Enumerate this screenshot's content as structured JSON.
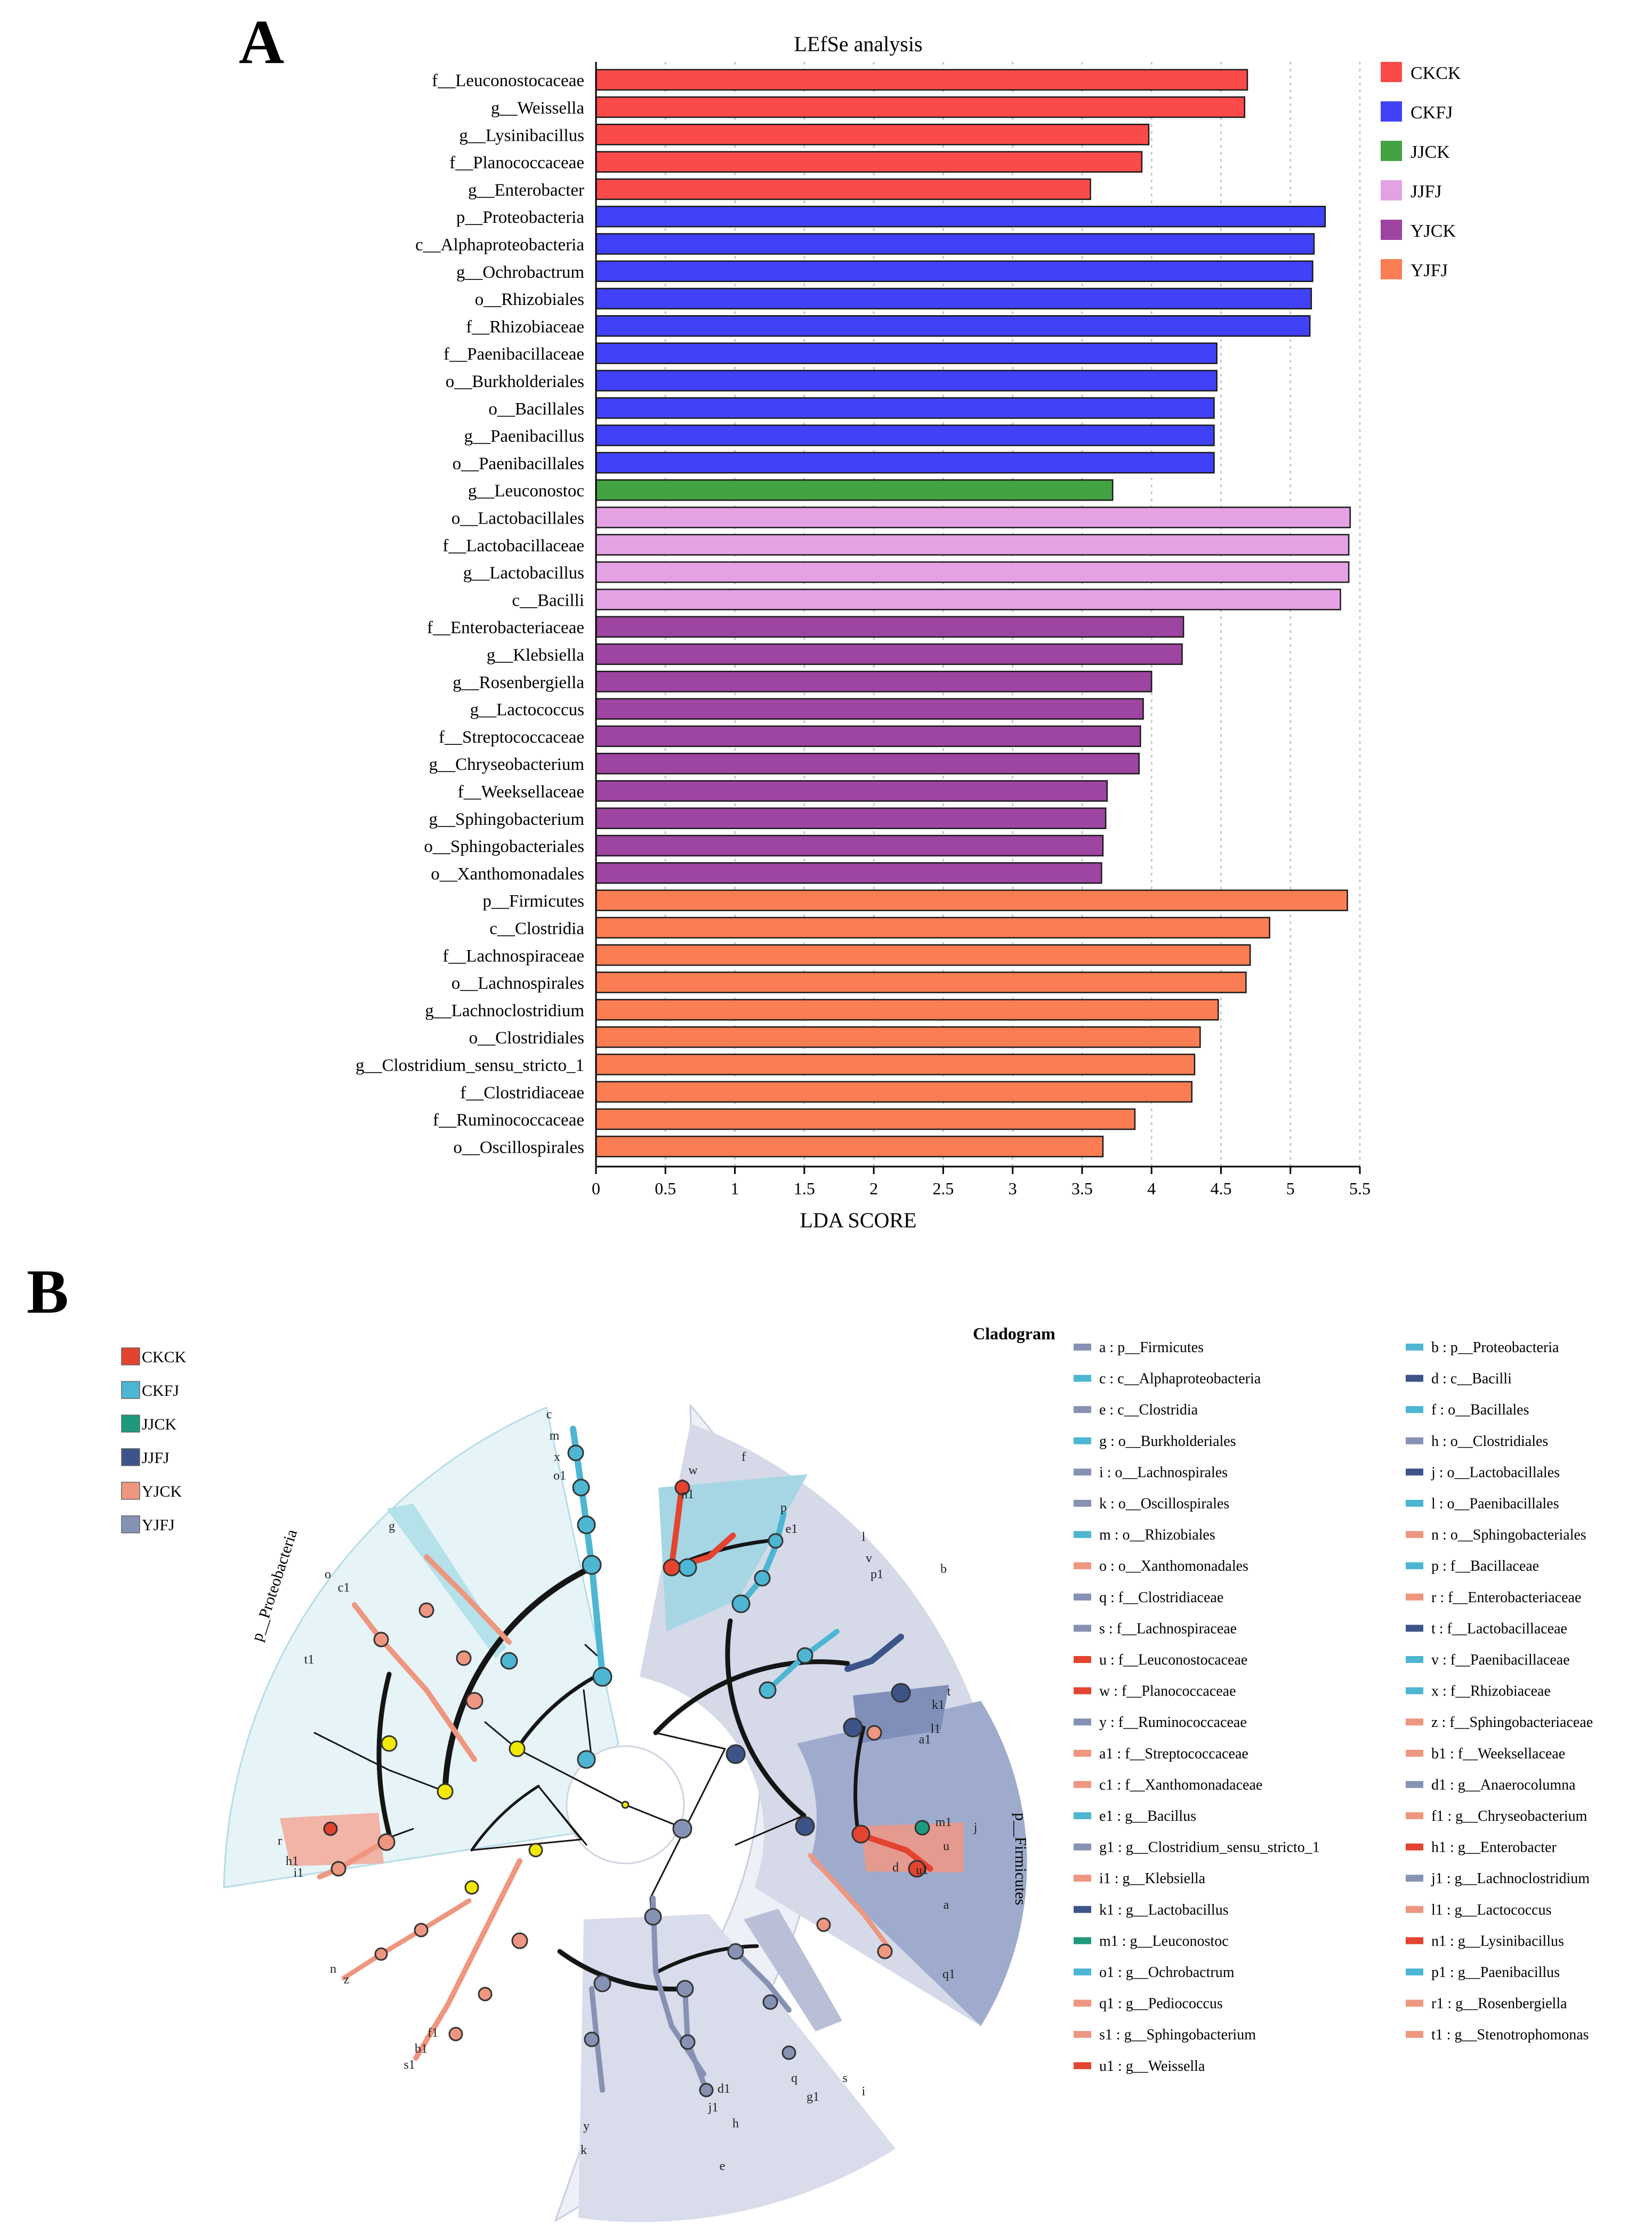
{
  "panels": {
    "a": "A",
    "b": "B"
  },
  "chart_data": [
    {
      "type": "bar",
      "orientation": "horizontal",
      "title": "LEfSe analysis",
      "xlabel": "LDA SCORE",
      "xlim": [
        0,
        5.5
      ],
      "xticks": [
        "0",
        "0.5",
        "1",
        "1.5",
        "2",
        "2.5",
        "3",
        "3.5",
        "4",
        "4.5",
        "5",
        "5.5"
      ],
      "grid": "vertical dotted",
      "legend_position": "right",
      "groups": [
        {
          "name": "CKCK",
          "color": "#fb4a4a"
        },
        {
          "name": "CKFJ",
          "color": "#4141f8"
        },
        {
          "name": "JJCK",
          "color": "#43a343"
        },
        {
          "name": "JJFJ",
          "color": "#e4a1e4"
        },
        {
          "name": "YJCK",
          "color": "#9e44a1"
        },
        {
          "name": "YJFJ",
          "color": "#fb7d53"
        }
      ],
      "bars": [
        {
          "label": "f__Leuconostocaceae",
          "value": 4.69,
          "group": "CKCK"
        },
        {
          "label": "g__Weissella",
          "value": 4.67,
          "group": "CKCK"
        },
        {
          "label": "g__Lysinibacillus",
          "value": 3.98,
          "group": "CKCK"
        },
        {
          "label": "f__Planococcaceae",
          "value": 3.93,
          "group": "CKCK"
        },
        {
          "label": "g__Enterobacter",
          "value": 3.56,
          "group": "CKCK"
        },
        {
          "label": "p__Proteobacteria",
          "value": 5.25,
          "group": "CKFJ"
        },
        {
          "label": "c__Alphaproteobacteria",
          "value": 5.17,
          "group": "CKFJ"
        },
        {
          "label": "g__Ochrobactrum",
          "value": 5.16,
          "group": "CKFJ"
        },
        {
          "label": "o__Rhizobiales",
          "value": 5.15,
          "group": "CKFJ"
        },
        {
          "label": "f__Rhizobiaceae",
          "value": 5.14,
          "group": "CKFJ"
        },
        {
          "label": "f__Paenibacillaceae",
          "value": 4.47,
          "group": "CKFJ"
        },
        {
          "label": "o__Burkholderiales",
          "value": 4.47,
          "group": "CKFJ"
        },
        {
          "label": "o__Bacillales",
          "value": 4.45,
          "group": "CKFJ"
        },
        {
          "label": "g__Paenibacillus",
          "value": 4.45,
          "group": "CKFJ"
        },
        {
          "label": "o__Paenibacillales",
          "value": 4.45,
          "group": "CKFJ"
        },
        {
          "label": "g__Leuconostoc",
          "value": 3.72,
          "group": "JJCK"
        },
        {
          "label": "o__Lactobacillales",
          "value": 5.43,
          "group": "JJFJ"
        },
        {
          "label": "f__Lactobacillaceae",
          "value": 5.42,
          "group": "JJFJ"
        },
        {
          "label": "g__Lactobacillus",
          "value": 5.42,
          "group": "JJFJ"
        },
        {
          "label": "c__Bacilli",
          "value": 5.36,
          "group": "JJFJ"
        },
        {
          "label": "f__Enterobacteriaceae",
          "value": 4.23,
          "group": "YJCK"
        },
        {
          "label": "g__Klebsiella",
          "value": 4.22,
          "group": "YJCK"
        },
        {
          "label": "g__Rosenbergiella",
          "value": 4.0,
          "group": "YJCK"
        },
        {
          "label": "g__Lactococcus",
          "value": 3.94,
          "group": "YJCK"
        },
        {
          "label": "f__Streptococcaceae",
          "value": 3.92,
          "group": "YJCK"
        },
        {
          "label": "g__Chryseobacterium",
          "value": 3.91,
          "group": "YJCK"
        },
        {
          "label": "f__Weeksellaceae",
          "value": 3.68,
          "group": "YJCK"
        },
        {
          "label": "g__Sphingobacterium",
          "value": 3.67,
          "group": "YJCK"
        },
        {
          "label": "o__Sphingobacteriales",
          "value": 3.65,
          "group": "YJCK"
        },
        {
          "label": "o__Xanthomonadales",
          "value": 3.64,
          "group": "YJCK"
        },
        {
          "label": "p__Firmicutes",
          "value": 5.41,
          "group": "YJFJ"
        },
        {
          "label": "c__Clostridia",
          "value": 4.85,
          "group": "YJFJ"
        },
        {
          "label": "f__Lachnospiraceae",
          "value": 4.71,
          "group": "YJFJ"
        },
        {
          "label": "o__Lachnospirales",
          "value": 4.68,
          "group": "YJFJ"
        },
        {
          "label": "g__Lachnoclostridium",
          "value": 4.48,
          "group": "YJFJ"
        },
        {
          "label": "o__Clostridiales",
          "value": 4.35,
          "group": "YJFJ"
        },
        {
          "label": "g__Clostridium_sensu_stricto_1",
          "value": 4.31,
          "group": "YJFJ"
        },
        {
          "label": "f__Clostridiaceae",
          "value": 4.29,
          "group": "YJFJ"
        },
        {
          "label": "f__Ruminococcaceae",
          "value": 3.88,
          "group": "YJFJ"
        },
        {
          "label": "o__Oscillospirales",
          "value": 3.65,
          "group": "YJFJ"
        }
      ]
    },
    {
      "type": "cladogram",
      "title": "Cladogram",
      "groups": [
        {
          "name": "CKCK",
          "color": "#e3432f"
        },
        {
          "name": "CKFJ",
          "color": "#4db6d2"
        },
        {
          "name": "JJCK",
          "color": "#1d9a7c"
        },
        {
          "name": "JJFJ",
          "color": "#3d5488"
        },
        {
          "name": "YJCK",
          "color": "#ef9680"
        },
        {
          "name": "YJFJ",
          "color": "#8592b4"
        }
      ],
      "arc_labels": [
        "p__Proteobacteria",
        "p__Firmicutes"
      ],
      "legend_left": [
        {
          "text": "a : p__Firmicutes",
          "group": "YJFJ"
        },
        {
          "text": "c : c__Alphaproteobacteria",
          "group": "CKFJ"
        },
        {
          "text": "e : c__Clostridia",
          "group": "YJFJ"
        },
        {
          "text": "g : o__Burkholderiales",
          "group": "CKFJ"
        },
        {
          "text": "i : o__Lachnospirales",
          "group": "YJFJ"
        },
        {
          "text": "k : o__Oscillospirales",
          "group": "YJFJ"
        },
        {
          "text": "m : o__Rhizobiales",
          "group": "CKFJ"
        },
        {
          "text": "o : o__Xanthomonadales",
          "group": "YJCK"
        },
        {
          "text": "q : f__Clostridiaceae",
          "group": "YJFJ"
        },
        {
          "text": "s : f__Lachnospiraceae",
          "group": "YJFJ"
        },
        {
          "text": "u : f__Leuconostocaceae",
          "group": "CKCK"
        },
        {
          "text": "w : f__Planococcaceae",
          "group": "CKCK"
        },
        {
          "text": "y : f__Ruminococcaceae",
          "group": "YJFJ"
        },
        {
          "text": "a1 : f__Streptococcaceae",
          "group": "YJCK"
        },
        {
          "text": "c1 : f__Xanthomonadaceae",
          "group": "YJCK"
        },
        {
          "text": "e1 : g__Bacillus",
          "group": "CKFJ"
        },
        {
          "text": "g1 : g__Clostridium_sensu_stricto_1",
          "group": "YJFJ"
        },
        {
          "text": "i1 : g__Klebsiella",
          "group": "YJCK"
        },
        {
          "text": "k1 : g__Lactobacillus",
          "group": "JJFJ"
        },
        {
          "text": "m1 : g__Leuconostoc",
          "group": "JJCK"
        },
        {
          "text": "o1 : g__Ochrobactrum",
          "group": "CKFJ"
        },
        {
          "text": "q1 : g__Pediococcus",
          "group": "YJCK"
        },
        {
          "text": "s1 : g__Sphingobacterium",
          "group": "YJCK"
        },
        {
          "text": "u1 : g__Weissella",
          "group": "CKCK"
        }
      ],
      "legend_right": [
        {
          "text": "b : p__Proteobacteria",
          "group": "CKFJ"
        },
        {
          "text": "d : c__Bacilli",
          "group": "JJFJ"
        },
        {
          "text": "f : o__Bacillales",
          "group": "CKFJ"
        },
        {
          "text": "h : o__Clostridiales",
          "group": "YJFJ"
        },
        {
          "text": "j : o__Lactobacillales",
          "group": "JJFJ"
        },
        {
          "text": "l : o__Paenibacillales",
          "group": "CKFJ"
        },
        {
          "text": "n : o__Sphingobacteriales",
          "group": "YJCK"
        },
        {
          "text": "p : f__Bacillaceae",
          "group": "CKFJ"
        },
        {
          "text": "r : f__Enterobacteriaceae",
          "group": "YJCK"
        },
        {
          "text": "t : f__Lactobacillaceae",
          "group": "JJFJ"
        },
        {
          "text": "v : f__Paenibacillaceae",
          "group": "CKFJ"
        },
        {
          "text": "x : f__Rhizobiaceae",
          "group": "CKFJ"
        },
        {
          "text": "z : f__Sphingobacteriaceae",
          "group": "YJCK"
        },
        {
          "text": "b1 : f__Weeksellaceae",
          "group": "YJCK"
        },
        {
          "text": "d1 : g__Anaerocolumna",
          "group": "YJFJ"
        },
        {
          "text": "f1 : g__Chryseobacterium",
          "group": "YJCK"
        },
        {
          "text": "h1 : g__Enterobacter",
          "group": "CKCK"
        },
        {
          "text": "j1 : g__Lachnoclostridium",
          "group": "YJFJ"
        },
        {
          "text": "l1 : g__Lactococcus",
          "group": "YJCK"
        },
        {
          "text": "n1 : g__Lysinibacillus",
          "group": "CKCK"
        },
        {
          "text": "p1 : g__Paenibacillus",
          "group": "CKFJ"
        },
        {
          "text": "r1 : g__Rosenbergiella",
          "group": "YJCK"
        },
        {
          "text": "t1 : g__Stenotrophomonas",
          "group": "YJCK"
        }
      ],
      "node_letters": {
        "proteobacteria": [
          "c",
          "m",
          "x",
          "o1",
          "g",
          "o",
          "c1",
          "t1",
          "r",
          "h1",
          "i1",
          "n",
          "z",
          "s1",
          "b1",
          "f1"
        ],
        "bacilli": [
          "f",
          "p",
          "e1",
          "w",
          "n1",
          "l",
          "v",
          "p1",
          "j",
          "t",
          "k1",
          "u",
          "u1",
          "m1",
          "a1",
          "l1",
          "q1"
        ],
        "clostridia": [
          "e",
          "h",
          "q",
          "g1",
          "i",
          "s",
          "j1",
          "d1",
          "k",
          "y"
        ],
        "phylum": [
          "b",
          "a",
          "d"
        ]
      }
    }
  ]
}
